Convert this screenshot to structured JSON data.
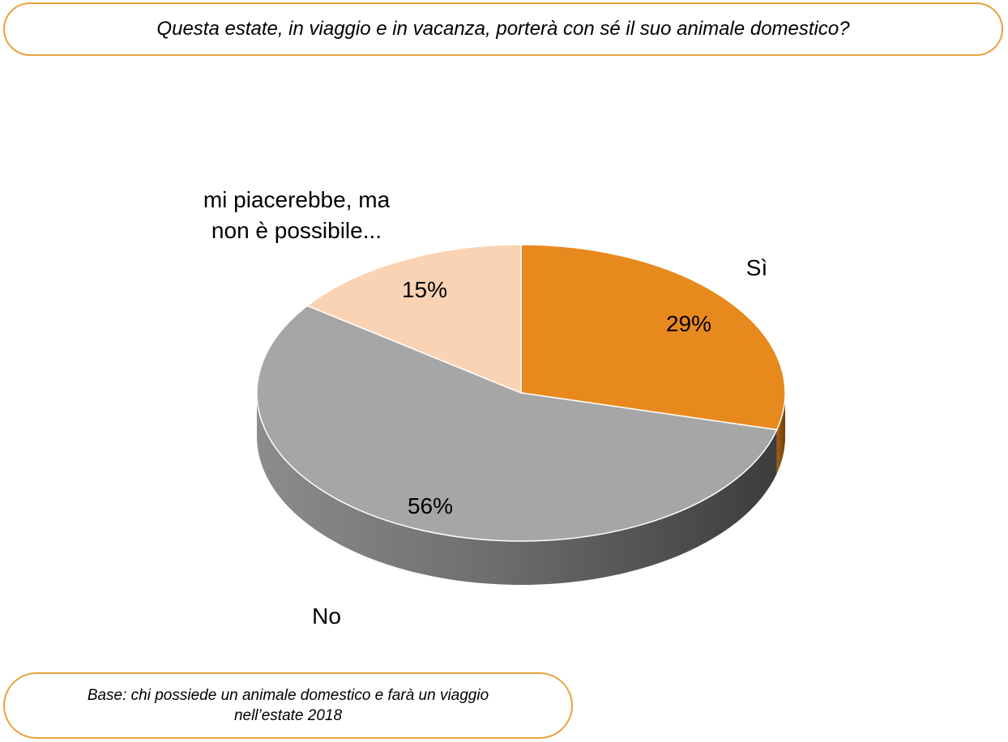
{
  "header": {
    "question": "Questa estate, in viaggio e in vacanza, porterà con sé il suo animale domestico?"
  },
  "footer": {
    "base_line1": "Base: chi possiede un animale domestico e farà un viaggio",
    "base_line2": "nell’estate 2018"
  },
  "chart_data": {
    "type": "pie",
    "style": "3d",
    "slices": [
      {
        "label": "Sì",
        "label_lines": [
          "Sì"
        ],
        "value": 29,
        "value_label": "29%",
        "color": "#e8891e"
      },
      {
        "label": "No",
        "label_lines": [
          "No"
        ],
        "value": 56,
        "value_label": "56%",
        "color": "#a6a6a6"
      },
      {
        "label": "mi piacerebbe, ma non è possibile...",
        "label_lines": [
          "mi piacerebbe, ma",
          "non è possibile..."
        ],
        "value": 15,
        "value_label": "15%",
        "color": "#f9d3b4"
      }
    ]
  }
}
